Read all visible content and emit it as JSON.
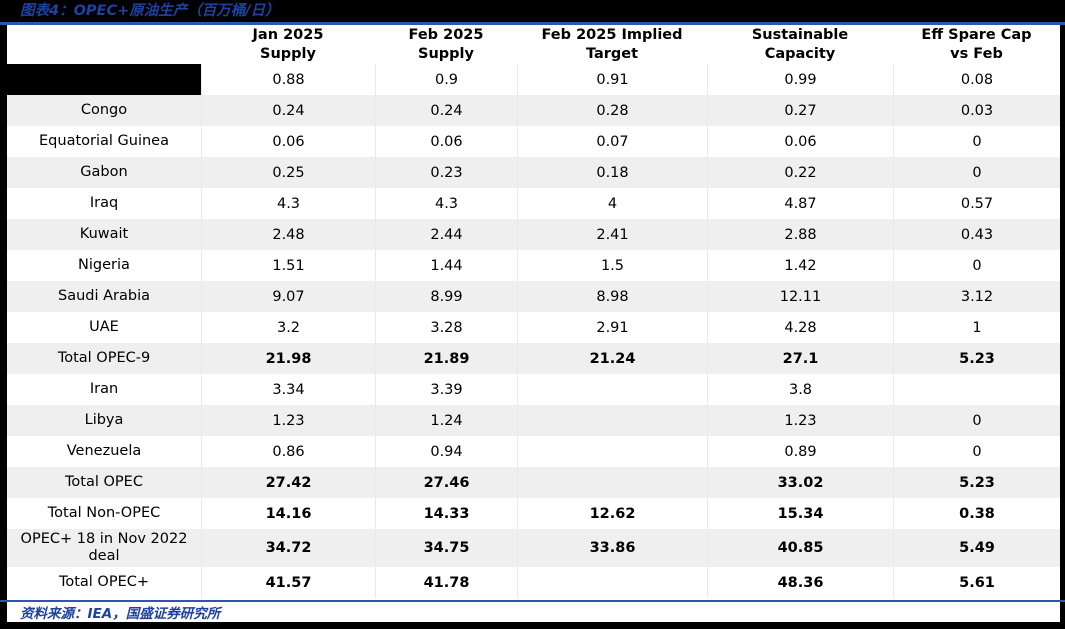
{
  "figure": {
    "title": "图表4：OPEC+原油生产（百万桶/日）",
    "source": "资料来源：IEA，国盛证券研究所"
  },
  "colors": {
    "accent_blue": "#1f41a0",
    "rule_blue": "#2b57ae",
    "row_stripe_gray": "#efefef",
    "redaction_black": "#000000"
  },
  "table": {
    "columns": [
      "Jan 2025\nSupply",
      "Feb 2025\nSupply",
      "Feb 2025 Implied\nTarget",
      "Sustainable\nCapacity",
      "Eff Spare Cap\nvs Feb"
    ],
    "rows": [
      {
        "name": "",
        "redacted": true,
        "bold": false,
        "tall": false,
        "values": [
          "0.88",
          "0.9",
          "0.91",
          "0.99",
          "0.08"
        ]
      },
      {
        "name": "Congo",
        "redacted": false,
        "bold": false,
        "tall": false,
        "values": [
          "0.24",
          "0.24",
          "0.28",
          "0.27",
          "0.03"
        ]
      },
      {
        "name": "Equatorial Guinea",
        "redacted": false,
        "bold": false,
        "tall": false,
        "values": [
          "0.06",
          "0.06",
          "0.07",
          "0.06",
          "0"
        ]
      },
      {
        "name": "Gabon",
        "redacted": false,
        "bold": false,
        "tall": false,
        "values": [
          "0.25",
          "0.23",
          "0.18",
          "0.22",
          "0"
        ]
      },
      {
        "name": "Iraq",
        "redacted": false,
        "bold": false,
        "tall": false,
        "values": [
          "4.3",
          "4.3",
          "4",
          "4.87",
          "0.57"
        ]
      },
      {
        "name": "Kuwait",
        "redacted": false,
        "bold": false,
        "tall": false,
        "values": [
          "2.48",
          "2.44",
          "2.41",
          "2.88",
          "0.43"
        ]
      },
      {
        "name": "Nigeria",
        "redacted": false,
        "bold": false,
        "tall": false,
        "values": [
          "1.51",
          "1.44",
          "1.5",
          "1.42",
          "0"
        ]
      },
      {
        "name": "Saudi Arabia",
        "redacted": false,
        "bold": false,
        "tall": false,
        "values": [
          "9.07",
          "8.99",
          "8.98",
          "12.11",
          "3.12"
        ]
      },
      {
        "name": "UAE",
        "redacted": false,
        "bold": false,
        "tall": false,
        "values": [
          "3.2",
          "3.28",
          "2.91",
          "4.28",
          "1"
        ]
      },
      {
        "name": "Total OPEC-9",
        "redacted": false,
        "bold": true,
        "tall": false,
        "values": [
          "21.98",
          "21.89",
          "21.24",
          "27.1",
          "5.23"
        ]
      },
      {
        "name": "Iran",
        "redacted": false,
        "bold": false,
        "tall": false,
        "values": [
          "3.34",
          "3.39",
          "",
          "3.8",
          ""
        ]
      },
      {
        "name": "Libya",
        "redacted": false,
        "bold": false,
        "tall": false,
        "values": [
          "1.23",
          "1.24",
          "",
          "1.23",
          "0"
        ]
      },
      {
        "name": "Venezuela",
        "redacted": false,
        "bold": false,
        "tall": false,
        "values": [
          "0.86",
          "0.94",
          "",
          "0.89",
          "0"
        ]
      },
      {
        "name": "Total OPEC",
        "redacted": false,
        "bold": true,
        "tall": false,
        "values": [
          "27.42",
          "27.46",
          "",
          "33.02",
          "5.23"
        ]
      },
      {
        "name": "Total Non-OPEC",
        "redacted": false,
        "bold": true,
        "tall": false,
        "values": [
          "14.16",
          "14.33",
          "12.62",
          "15.34",
          "0.38"
        ]
      },
      {
        "name": "OPEC+ 18 in Nov 2022 deal",
        "redacted": false,
        "bold": true,
        "tall": true,
        "values": [
          "34.72",
          "34.75",
          "33.86",
          "40.85",
          "5.49"
        ]
      },
      {
        "name": "Total OPEC+",
        "redacted": false,
        "bold": true,
        "tall": false,
        "values": [
          "41.57",
          "41.78",
          "",
          "48.36",
          "5.61"
        ]
      }
    ]
  }
}
